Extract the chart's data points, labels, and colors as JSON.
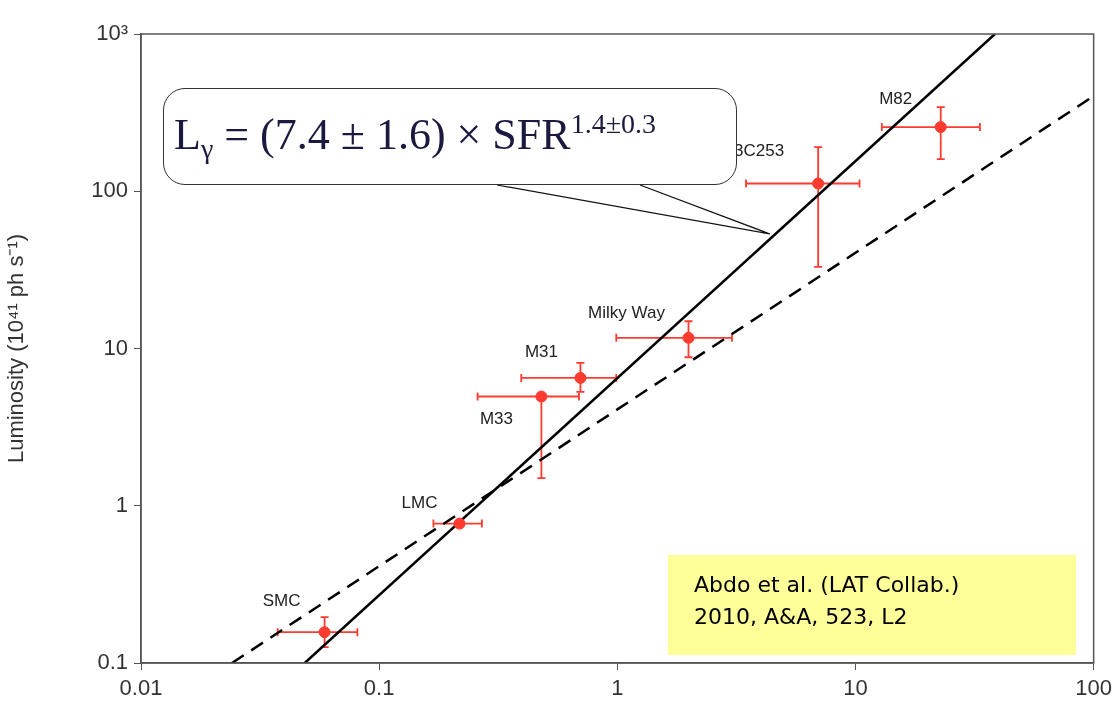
{
  "chart_data": {
    "type": "scatter",
    "ylabel": "Luminosity (10⁴¹ ph s⁻¹)",
    "log": "xy",
    "xlim": [
      0.01,
      100
    ],
    "ylim": [
      0.1,
      1000
    ],
    "xticks": [
      0.01,
      0.1,
      1,
      10,
      100
    ],
    "yticks": [
      0.1,
      1,
      10,
      100,
      {
        "value": 1000,
        "label": "10³"
      }
    ],
    "marker": "circle",
    "series": [
      {
        "color": "#ff3b30",
        "x": [
          0.059,
          0.2175,
          0.48,
          0.7,
          1.99,
          6.97,
          22.8
        ],
        "values": [
          0.157,
          0.77,
          4.95,
          6.5,
          11.7,
          112,
          256
        ],
        "errors": [
          [
            0.126,
            0.196
          ],
          null,
          [
            1.5,
            4.95
          ],
          [
            5.3,
            8.1
          ],
          [
            8.8,
            14.9
          ],
          [
            33,
            191
          ],
          [
            160,
            343
          ]
        ],
        "xerrors": [
          [
            0.0375,
            0.081
          ],
          [
            0.169,
            0.27
          ],
          [
            0.259,
            0.69
          ],
          [
            0.395,
            0.99
          ],
          [
            0.99,
            3.03
          ],
          [
            3.47,
            10.4
          ],
          [
            12.9,
            33.3
          ]
        ]
      },
      {
        "type": "line",
        "color": "#000000",
        "x": [
          0.0487,
          38.5
        ],
        "values": [
          0.1,
          1000
        ],
        "line_style": "solid",
        "marker": "none"
      },
      {
        "type": "line",
        "color": "#000000",
        "x": [
          0.0241,
          100
        ],
        "values": [
          0.1,
          403
        ],
        "line_style": "dashed",
        "marker": "none"
      }
    ],
    "annotations": [
      "L$_{γ}$ = (7.4 ± 1.6) × SFR$^{1.4±0.3}$",
      {
        "text": "SMC",
        "x": 0.059,
        "y": 0.157
      },
      {
        "text": "LMC",
        "x": 0.2175,
        "y": 0.77
      },
      {
        "text": "M33",
        "x": 0.48,
        "y": 4.95
      },
      {
        "text": "M31",
        "x": 0.7,
        "y": 6.5
      },
      {
        "text": "Milky Way",
        "x": 1.99,
        "y": 11.7
      },
      {
        "text": "3C253",
        "x": 6.97,
        "y": 112
      },
      {
        "text": "M82",
        "x": 22.8,
        "y": 256
      },
      "Abdo et al. (LAT Collab.)\n2010, A&A, 523, L2"
    ]
  }
}
